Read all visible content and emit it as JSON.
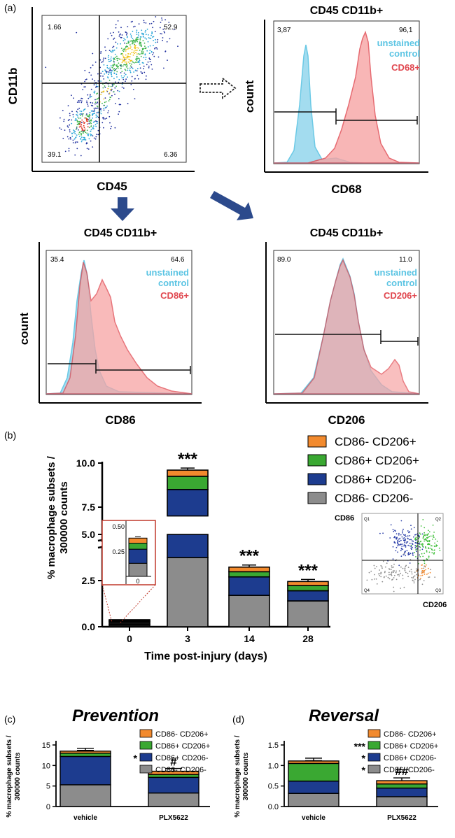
{
  "colors": {
    "cyan": "#5bc4e3",
    "cyan_fill": "#9ad9ee",
    "red": "#e0474f",
    "red_fill": "#f7a4a4",
    "overlap": "#8fb3d0",
    "navy_arrow": "#2c4a8c",
    "orange": "#f28a2e",
    "green": "#3aa832",
    "blue": "#1d3c8f",
    "grey": "#8c8c8c"
  },
  "panel_a": {
    "label": "(a)",
    "scatter": {
      "ylabel": "CD11b",
      "xlabel": "CD45",
      "q_tl": "1.66",
      "q_tr": "52.9",
      "q_bl": "39.1",
      "q_br": "6.36"
    },
    "cd68": {
      "title": "CD45 CD11b+",
      "ylabel": "count",
      "xlabel": "CD68",
      "left_value": "3,87",
      "right_value": "96,1",
      "legend_control_line1": "unstained",
      "legend_control_line2": "control",
      "legend_marker": "CD68+"
    },
    "cd86": {
      "title": "CD45 CD11b+",
      "ylabel": "count",
      "xlabel": "CD86",
      "left_value": "35.4",
      "right_value": "64.6",
      "legend_control_line1": "unstained",
      "legend_control_line2": "control",
      "legend_marker": "CD86+"
    },
    "cd206": {
      "title": "CD45 CD11b+",
      "xlabel": "CD206",
      "left_value": "89.0",
      "right_value": "11.0",
      "legend_control_line1": "unstained",
      "legend_control_line2": "control",
      "legend_marker": "CD206+"
    }
  },
  "panel_b_meta": {
    "label": "(b)",
    "ylabel_line1": "% macrophage subsets /",
    "ylabel_line2": "300000 counts",
    "xlabel": "Time post-injury  (days)",
    "upper_ticks": [
      "7.5",
      "10.0"
    ],
    "lower_ticks": [
      "0.0",
      "2.5",
      "5.0"
    ],
    "inset_ticks": [
      "0.25",
      "0.50"
    ],
    "inset_xtick": "0",
    "sig": [
      "***",
      "***",
      "***"
    ],
    "mini_scatter_ylabel": "CD86",
    "mini_scatter_xlabel": "CD206",
    "mini_scatter_quadrants": [
      "Q1",
      "Q2",
      "Q3",
      "Q4"
    ]
  },
  "chart_data": [
    {
      "id": "b",
      "type": "bar",
      "stacked": true,
      "title": "",
      "xlabel": "Time post-injury  (days)",
      "ylabel": "% macrophage subsets / 300000 counts",
      "categories": [
        "0",
        "3",
        "14",
        "28"
      ],
      "broken_axis": [
        5.0,
        7.0
      ],
      "ylim": [
        0,
        10.0
      ],
      "series": [
        {
          "name": "CD86- CD206-",
          "values": [
            0.13,
            3.75,
            1.7,
            1.4
          ]
        },
        {
          "name": "CD86+ CD206-",
          "values": [
            0.14,
            4.75,
            1.0,
            0.55
          ]
        },
        {
          "name": "CD86+ CD206+",
          "values": [
            0.06,
            0.75,
            0.28,
            0.28
          ]
        },
        {
          "name": "CD86- CD206+",
          "values": [
            0.05,
            0.35,
            0.25,
            0.22
          ]
        }
      ],
      "legend": [
        "CD86- CD206+",
        "CD86+ CD206+",
        "CD86+ CD206-",
        "CD86- CD206-"
      ]
    },
    {
      "id": "c",
      "type": "bar",
      "stacked": true,
      "title": "Prevention",
      "xlabel": "",
      "ylabel": "% macrophage subsets / 300000 counts",
      "categories": [
        "vehicle",
        "PLX5622"
      ],
      "yticks": [
        "0",
        "5",
        "10",
        "15"
      ],
      "ylim": [
        0,
        15
      ],
      "series": [
        {
          "name": "CD86- CD206-",
          "values": [
            5.3,
            3.3
          ]
        },
        {
          "name": "CD86+ CD206-",
          "values": [
            6.9,
            3.8
          ]
        },
        {
          "name": "CD86+ CD206+",
          "values": [
            0.8,
            0.7
          ]
        },
        {
          "name": "CD86- CD206+",
          "values": [
            0.5,
            0.8
          ]
        }
      ],
      "legend": [
        "CD86- CD206+",
        "CD86+ CD206+",
        "CD86+ CD206-",
        "CD86- CD206-"
      ],
      "legend_sig": [
        "",
        "",
        "*",
        ""
      ],
      "bar_sig": [
        "",
        "#"
      ]
    },
    {
      "id": "d",
      "type": "bar",
      "stacked": true,
      "title": "Reversal",
      "xlabel": "",
      "ylabel": "% macrophage subsets / 300000 counts",
      "categories": [
        "vehicle",
        "PLX5622"
      ],
      "yticks": [
        "0.0",
        "0.5",
        "1.0",
        "1.5"
      ],
      "ylim": [
        0,
        1.5
      ],
      "series": [
        {
          "name": "CD86- CD206-",
          "values": [
            0.32,
            0.24
          ]
        },
        {
          "name": "CD86+ CD206-",
          "values": [
            0.3,
            0.21
          ]
        },
        {
          "name": "CD86+ CD206+",
          "values": [
            0.43,
            0.1
          ]
        },
        {
          "name": "CD86- CD206+",
          "values": [
            0.06,
            0.08
          ]
        }
      ],
      "legend": [
        "CD86- CD206+",
        "CD86+ CD206+",
        "CD86+ CD206-",
        "CD86- CD206-"
      ],
      "legend_sig": [
        "",
        "***",
        "*",
        "*"
      ],
      "bar_sig": [
        "",
        "##"
      ]
    }
  ]
}
